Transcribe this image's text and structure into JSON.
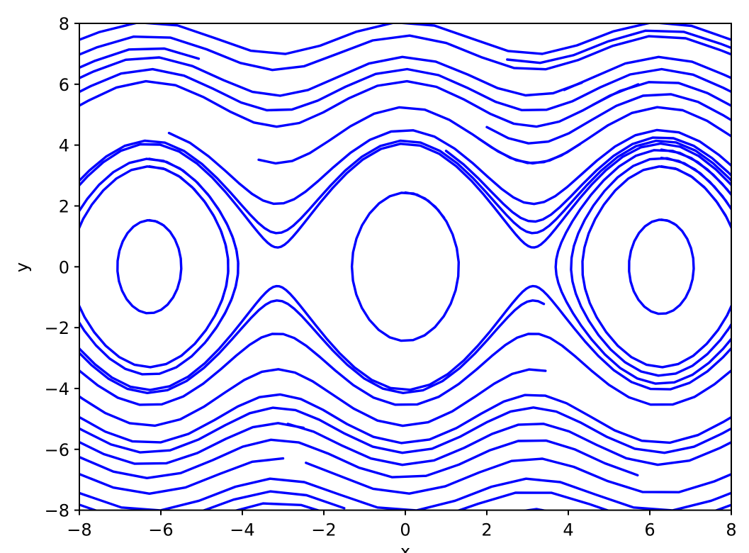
{
  "chart_data": {
    "type": "line",
    "subtype": "phase-portrait-contours",
    "title": "",
    "xlabel": "x",
    "ylabel": "y",
    "xlim": [
      -8,
      8
    ],
    "ylim": [
      -8,
      8
    ],
    "xticks": [
      -8,
      -6,
      -4,
      -2,
      0,
      2,
      4,
      6,
      8
    ],
    "yticks": [
      -8,
      -6,
      -4,
      -2,
      0,
      2,
      4,
      6,
      8
    ],
    "grid": false,
    "legend": false,
    "line_color": "#0000ff",
    "frame_color": "#000000",
    "text_color": "#000000",
    "background": "#ffffff",
    "hamiltonian": "H(x,y) = y^2/2 - 4*cos(x)",
    "description": "Blue pendulum phase-portrait curves: closed orbits around (0,0) and (±2π,0), open wavy curves above and below the separatrix; curves are equal-time-step polylines, some ending mid-plot.",
    "system": {
      "dxdt": "y",
      "dydt": "-4*sin(x)",
      "dt": 0.12,
      "integrator": "rk4"
    },
    "trajectory_fields": [
      "x0",
      "y0",
      "steps"
    ],
    "trajectories": [
      [
        -8.4,
        2.061,
        160
      ],
      [
        -8.4,
        2.251,
        80
      ],
      [
        1.0,
        3.811,
        26
      ],
      [
        -5.8,
        4.398,
        40
      ],
      [
        -3.6,
        3.519,
        16
      ],
      [
        1.8,
        4.212,
        14
      ],
      [
        2.0,
        4.59,
        14
      ],
      [
        -8.4,
        5.005,
        22
      ],
      [
        4.6,
        5.32,
        9
      ],
      [
        -8.4,
        5.482,
        40
      ],
      [
        -8.4,
        5.954,
        17
      ],
      [
        3.9,
        5.813,
        9
      ],
      [
        -8.4,
        6.756,
        21
      ],
      [
        2.5,
        6.811,
        11
      ],
      [
        -8.4,
        7.256,
        23
      ],
      [
        -8.4,
        6.31,
        4
      ],
      [
        8.4,
        -2.061,
        160
      ],
      [
        3.4,
        -1.22,
        70
      ],
      [
        8.4,
        -2.941,
        60
      ],
      [
        3.44,
        -3.42,
        46
      ],
      [
        8.4,
        -4.631,
        40
      ],
      [
        8.4,
        -5.025,
        38
      ],
      [
        8.4,
        -5.5,
        16
      ],
      [
        -2.5,
        -5.291,
        13
      ],
      [
        5.7,
        -6.85,
        26
      ],
      [
        8.4,
        -6.592,
        13
      ],
      [
        -3.0,
        -6.299,
        11
      ],
      [
        8.4,
        -7.228,
        28
      ],
      [
        8.4,
        -7.632,
        10
      ],
      [
        -1.5,
        -7.935,
        9
      ],
      [
        5.2,
        -8.669,
        7
      ],
      [
        -1.6,
        -8.232,
        8
      ],
      [
        0,
        2.44,
        33
      ],
      [
        -6.283,
        1.53,
        29
      ],
      [
        -6.283,
        3.3,
        46
      ],
      [
        -6.283,
        3.55,
        52
      ],
      [
        6.283,
        1.55,
        29
      ],
      [
        6.283,
        3.3,
        46
      ],
      [
        6.283,
        3.58,
        52
      ],
      [
        6.283,
        3.85,
        64
      ]
    ]
  }
}
